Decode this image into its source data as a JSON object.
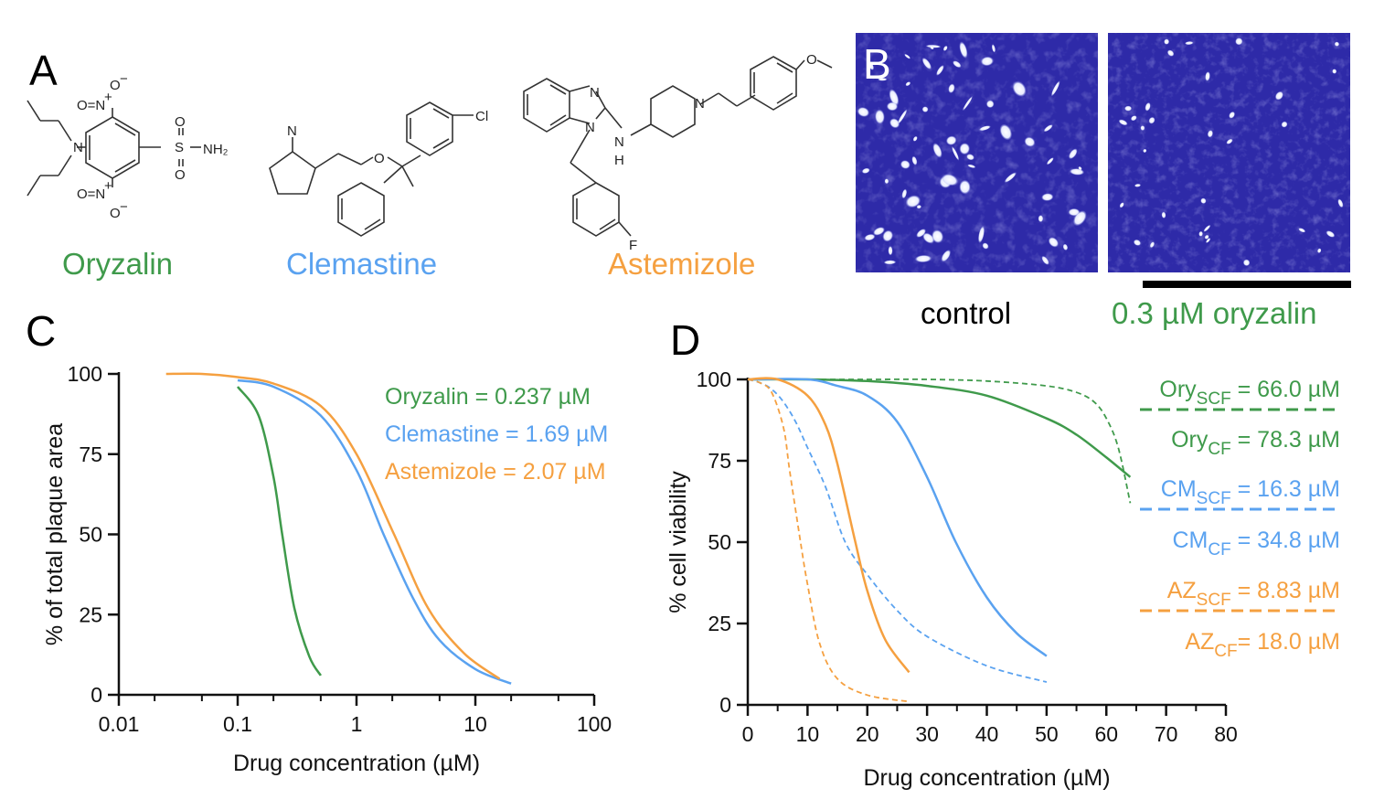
{
  "panels": {
    "A": {
      "label": "A"
    },
    "B": {
      "label": "B",
      "captions": [
        "control",
        "0.3 µM oryzalin"
      ]
    },
    "C": {
      "label": "C"
    },
    "D": {
      "label": "D"
    }
  },
  "compounds": [
    {
      "name": "Oryzalin",
      "color": "#3f9a4b"
    },
    {
      "name": "Clemastine",
      "color": "#5aa2f0"
    },
    {
      "name": "Astemizole",
      "color": "#f5a040"
    }
  ],
  "atoms": {
    "oryzalin": [
      "O=N",
      "+",
      "O",
      "−",
      "N",
      "O",
      "S",
      "NH₂",
      "O",
      "O=N",
      "+",
      "O",
      "−"
    ],
    "clemastine": [
      "N",
      "O",
      "Cl"
    ],
    "astemizole": [
      "N",
      "N",
      "N",
      "H",
      "N",
      "O",
      "F"
    ]
  },
  "colors": {
    "oryzalin": "#3f9a4b",
    "clemastine": "#5aa2f0",
    "astemizole": "#f5a040",
    "stain": "#2e2aa8"
  },
  "chart_data": [
    {
      "type": "line",
      "panel": "C",
      "xlabel": "Drug concentration (µM)",
      "ylabel": "% of total plaque area",
      "xscale": "log",
      "xlim": [
        0.01,
        100
      ],
      "ylim": [
        0,
        100
      ],
      "xticks": [
        "0.01",
        "0.1",
        "1",
        "10",
        "100"
      ],
      "yticks": [
        "0",
        "25",
        "50",
        "75",
        "100"
      ],
      "legend_placement": "top-right",
      "legend": [
        "Oryzalin = 0.237 µM",
        "Clemastine = 1.69 µM",
        "Astemizole = 2.07 µM"
      ],
      "series": [
        {
          "name": "Oryzalin",
          "color": "#3f9a4b",
          "x": [
            0.1,
            0.15,
            0.2,
            0.237,
            0.3,
            0.4,
            0.5
          ],
          "y": [
            96,
            87,
            68,
            50,
            27,
            12,
            6
          ]
        },
        {
          "name": "Clemastine",
          "color": "#5aa2f0",
          "x": [
            0.1,
            0.2,
            0.5,
            1,
            1.69,
            3,
            5,
            10,
            20
          ],
          "y": [
            98,
            96,
            87,
            70,
            50,
            30,
            17,
            8,
            3.5
          ]
        },
        {
          "name": "Astemizole",
          "color": "#f5a040",
          "x": [
            0.025,
            0.05,
            0.1,
            0.2,
            0.5,
            1,
            2.07,
            4,
            8,
            16
          ],
          "y": [
            100,
            100,
            99,
            97,
            90,
            75,
            50,
            27,
            13,
            5
          ]
        }
      ]
    },
    {
      "type": "line",
      "panel": "D",
      "xlabel": "Drug concentration (µM)",
      "ylabel": "% cell viability",
      "xlim": [
        0,
        80
      ],
      "ylim": [
        0,
        100
      ],
      "xticks": [
        "0",
        "10",
        "20",
        "30",
        "40",
        "50",
        "60",
        "70",
        "80"
      ],
      "yticks": [
        "0",
        "25",
        "50",
        "75",
        "100"
      ],
      "legend_placement": "right",
      "legend": [
        {
          "main": "Ory",
          "sub": "SCF",
          "rest": " = 66.0 µM",
          "color": "#3f9a4b",
          "style": "dashed"
        },
        {
          "main": "Ory",
          "sub": "CF",
          "rest": " = 78.3 µM",
          "color": "#3f9a4b",
          "style": "solid"
        },
        {
          "main": "CM",
          "sub": "SCF",
          "rest": " = 16.3 µM",
          "color": "#5aa2f0",
          "style": "dashed"
        },
        {
          "main": "CM",
          "sub": "CF",
          "rest": " = 34.8 µM",
          "color": "#5aa2f0",
          "style": "solid"
        },
        {
          "main": "AZ",
          "sub": "SCF",
          "rest": " = 8.83 µM",
          "color": "#f5a040",
          "style": "dashed"
        },
        {
          "main": "AZ",
          "sub": "CF",
          "rest": "= 18.0 µM",
          "color": "#f5a040",
          "style": "solid"
        }
      ],
      "series": [
        {
          "name": "Ory SCF",
          "color": "#3f9a4b",
          "style": "dashed",
          "x": [
            0,
            10,
            20,
            30,
            40,
            50,
            55,
            58,
            60,
            62,
            64
          ],
          "y": [
            100,
            100,
            100,
            100,
            99.5,
            98,
            96,
            93,
            88,
            79,
            62
          ]
        },
        {
          "name": "Ory CF",
          "color": "#3f9a4b",
          "style": "solid",
          "x": [
            0,
            10,
            20,
            30,
            40,
            50,
            55,
            60,
            64
          ],
          "y": [
            100,
            100,
            99.5,
            98,
            95,
            88,
            83,
            76,
            70
          ]
        },
        {
          "name": "CM SCF",
          "color": "#5aa2f0",
          "style": "dashed",
          "x": [
            0,
            2,
            4,
            6,
            8,
            10,
            13,
            16.3,
            20,
            25,
            30,
            40,
            50
          ],
          "y": [
            100,
            99,
            97,
            93,
            87,
            79,
            67,
            50,
            40,
            29,
            21,
            12,
            7
          ]
        },
        {
          "name": "CM CF",
          "color": "#5aa2f0",
          "style": "solid",
          "x": [
            0,
            10,
            15,
            20,
            25,
            30,
            34.8,
            40,
            45,
            50
          ],
          "y": [
            100,
            100,
            98,
            95,
            87,
            70,
            50,
            33,
            22,
            15
          ]
        },
        {
          "name": "AZ SCF",
          "color": "#f5a040",
          "style": "dashed",
          "x": [
            0,
            2,
            4,
            6,
            7,
            8.83,
            10,
            12,
            15,
            20,
            27
          ],
          "y": [
            100,
            99,
            96,
            85,
            72,
            50,
            37,
            19,
            8,
            3,
            1
          ]
        },
        {
          "name": "AZ CF",
          "color": "#f5a040",
          "style": "solid",
          "x": [
            0,
            5,
            10,
            13,
            15,
            18,
            20,
            23,
            27
          ],
          "y": [
            100,
            100,
            95,
            86,
            74,
            50,
            35,
            20,
            10
          ]
        }
      ]
    }
  ]
}
